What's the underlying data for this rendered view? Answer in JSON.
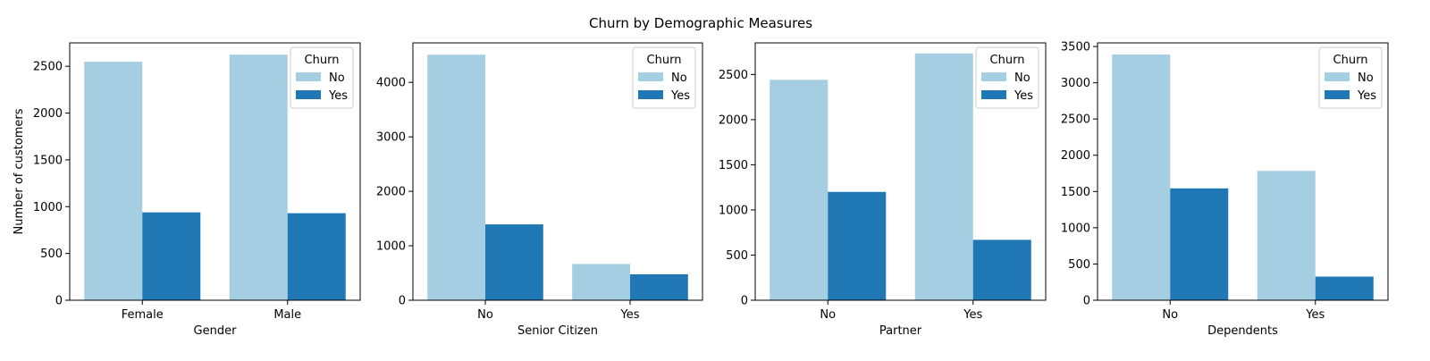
{
  "figure": {
    "title": "Churn by Demographic Measures"
  },
  "colors": {
    "no": "#a6cee3",
    "yes": "#1f78b4",
    "axis": "#000000"
  },
  "chart_data": [
    {
      "type": "bar",
      "xlabel": "Gender",
      "ylabel": "Number of customers",
      "categories": [
        "Female",
        "Male"
      ],
      "ylim": [
        0,
        2750
      ],
      "yticks": [
        0,
        500,
        1000,
        1500,
        2000,
        2500
      ],
      "legend": {
        "title": "Churn",
        "position": "top-right"
      },
      "series": [
        {
          "name": "No",
          "values": [
            2549,
            2625
          ]
        },
        {
          "name": "Yes",
          "values": [
            939,
            930
          ]
        }
      ]
    },
    {
      "type": "bar",
      "xlabel": "Senior Citizen",
      "ylabel": "",
      "categories": [
        "No",
        "Yes"
      ],
      "ylim": [
        0,
        4725
      ],
      "yticks": [
        0,
        1000,
        2000,
        3000,
        4000
      ],
      "legend": {
        "title": "Churn",
        "position": "top-right"
      },
      "series": [
        {
          "name": "No",
          "values": [
            4508,
            666
          ]
        },
        {
          "name": "Yes",
          "values": [
            1393,
            476
          ]
        }
      ]
    },
    {
      "type": "bar",
      "xlabel": "Partner",
      "ylabel": "",
      "categories": [
        "No",
        "Yes"
      ],
      "ylim": [
        0,
        2850
      ],
      "yticks": [
        0,
        500,
        1000,
        1500,
        2000,
        2500
      ],
      "legend": {
        "title": "Churn",
        "position": "top-right"
      },
      "series": [
        {
          "name": "No",
          "values": [
            2441,
            2733
          ]
        },
        {
          "name": "Yes",
          "values": [
            1200,
            669
          ]
        }
      ]
    },
    {
      "type": "bar",
      "xlabel": "Dependents",
      "ylabel": "",
      "categories": [
        "No",
        "Yes"
      ],
      "ylim": [
        0,
        3550
      ],
      "yticks": [
        0,
        500,
        1000,
        1500,
        2000,
        2500,
        3000,
        3500
      ],
      "legend": {
        "title": "Churn",
        "position": "top-right"
      },
      "series": [
        {
          "name": "No",
          "values": [
            3390,
            1784
          ]
        },
        {
          "name": "Yes",
          "values": [
            1543,
            326
          ]
        }
      ]
    }
  ]
}
